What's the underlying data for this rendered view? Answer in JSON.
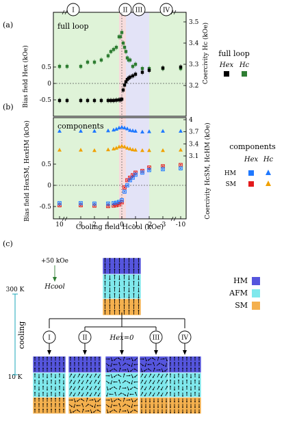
{
  "panel_labels": {
    "a": "(a)",
    "b": "(b)",
    "c": "(c)"
  },
  "regions": [
    "I",
    "II",
    "III",
    "IV"
  ],
  "colors": {
    "region1": "#dff3d8",
    "region2": "#f7dcdc",
    "region3": "#e3e3f7",
    "hex": "#000000",
    "hc": "#2e7d32",
    "hm": "#1f78ff",
    "sm": "#e31a1c",
    "hm_hc": "#1f78ff",
    "sm_hc": "#f0a000",
    "hm_layer": "#5555dd",
    "afm_layer": "#7fe8ec",
    "sm_layer": "#f4b04e",
    "cool_text": "#1aa6b8",
    "field_text": "#2e7d32"
  },
  "panel_a": {
    "title": "full loop",
    "ylabel_left": "Bias field Hex (kOe)",
    "ylabel_right": "Coercivity Hc (kOe)",
    "left_ticks": [
      "0.5",
      "0",
      "-0.5"
    ],
    "right_ticks": [
      "3.5",
      "3.4",
      "3.3",
      "3.2"
    ],
    "legend_title": "full loop",
    "legend_hex": "Hex",
    "legend_hc": "Hc"
  },
  "panel_b": {
    "title": "components",
    "ylabel_left": "Bias field HexSM, HexHM (kOe)",
    "ylabel_right": "Coercivity HcSM, HcHM (kOe)",
    "left_ticks": [
      "0.5",
      "0",
      "-0.5"
    ],
    "right_ticks": [
      "4",
      "3.7",
      "3.4",
      "3.1"
    ],
    "xlabel": "Cooling field Hcool (kOe)",
    "x_ticks": [
      "10",
      "3",
      "2",
      "1",
      "0",
      "-1",
      "-2",
      "-3",
      "-10"
    ],
    "legend_title": "components",
    "legend_hex": "Hex",
    "legend_hc": "Hc",
    "legend_hm": "HM",
    "legend_sm": "SM"
  },
  "chart_data": [
    {
      "type": "scatter",
      "title": "full loop",
      "x": [
        10,
        4,
        3,
        2.5,
        2,
        1.5,
        1,
        0.8,
        0.6,
        0.4,
        0.2,
        0.1,
        0,
        -0.1,
        -0.2,
        -0.3,
        -0.4,
        -0.5,
        -0.6,
        -0.8,
        -1,
        -1.5,
        -2,
        -3,
        -10
      ],
      "series": [
        {
          "name": "Hex",
          "values": [
            -0.52,
            -0.52,
            -0.52,
            -0.52,
            -0.52,
            -0.52,
            -0.52,
            -0.52,
            -0.52,
            -0.51,
            -0.5,
            -0.5,
            -0.48,
            -0.2,
            -0.05,
            0.05,
            0.12,
            0.16,
            0.19,
            0.23,
            0.28,
            0.34,
            0.4,
            0.47,
            0.5
          ]
        },
        {
          "name": "Hc",
          "values": [
            3.29,
            3.29,
            3.29,
            3.31,
            3.31,
            3.32,
            3.34,
            3.36,
            3.37,
            3.38,
            3.43,
            3.43,
            3.45,
            3.4,
            3.38,
            3.36,
            3.33,
            3.32,
            3.32,
            3.29,
            3.3,
            3.28,
            3.28,
            3.28,
            3.28
          ]
        }
      ],
      "ylim_left": [
        -0.6,
        0.6
      ],
      "ylim_right": [
        3.1,
        3.55
      ]
    },
    {
      "type": "scatter",
      "title": "components",
      "x": [
        10,
        3,
        2,
        1,
        0.6,
        0.4,
        0.2,
        0,
        -0.2,
        -0.4,
        -0.6,
        -0.8,
        -1,
        -1.5,
        -2,
        -3,
        -10
      ],
      "series": [
        {
          "name": "HexHM",
          "values": [
            -0.42,
            -0.42,
            -0.43,
            -0.43,
            -0.42,
            -0.41,
            -0.39,
            -0.35,
            -0.15,
            0.0,
            0.12,
            0.18,
            0.25,
            0.3,
            0.36,
            0.38,
            0.4
          ]
        },
        {
          "name": "HexSM",
          "values": [
            -0.47,
            -0.47,
            -0.48,
            -0.49,
            -0.48,
            -0.47,
            -0.45,
            -0.4,
            -0.05,
            0.12,
            0.18,
            0.24,
            0.3,
            0.34,
            0.42,
            0.45,
            0.48
          ]
        },
        {
          "name": "HcHM",
          "values": [
            3.72,
            3.72,
            3.72,
            3.73,
            3.75,
            3.77,
            3.8,
            3.82,
            3.8,
            3.78,
            3.74,
            3.73,
            3.72,
            3.7,
            3.71,
            3.72,
            3.72
          ]
        },
        {
          "name": "HcSM",
          "values": [
            3.25,
            3.25,
            3.24,
            3.26,
            3.28,
            3.3,
            3.33,
            3.35,
            3.33,
            3.3,
            3.28,
            3.26,
            3.25,
            3.24,
            3.24,
            3.24,
            3.25
          ]
        }
      ],
      "ylim_left": [
        -0.6,
        0.6
      ],
      "ylim_right": [
        3.0,
        4.0
      ]
    }
  ],
  "panel_c": {
    "field_label": "+50 kOe",
    "hcool_label": "Hcool",
    "temp_high": "300 K",
    "temp_low": "10 K",
    "cooling_label": "cooling",
    "zero_bias": "Hex=0",
    "legend": [
      "HM",
      "AFM",
      "SM"
    ]
  }
}
